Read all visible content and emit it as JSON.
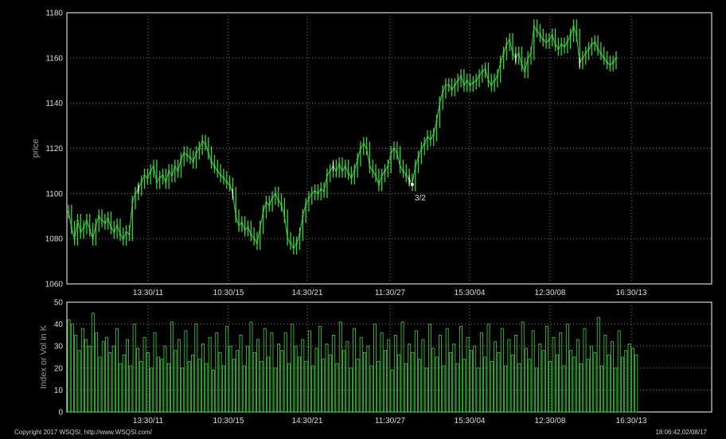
{
  "chart_data": [
    {
      "type": "line",
      "ylabel": "price",
      "ylim": [
        1060,
        1180
      ],
      "y_ticks": [
        1060,
        1080,
        1100,
        1120,
        1140,
        1160,
        1180
      ],
      "x_tick_labels": [
        "13:30/11",
        "10:30/15",
        "14:30/21",
        "11:30/27",
        "15:30/04",
        "12:30/08",
        "16:30/13"
      ],
      "grid": true,
      "colors": {
        "line": "#3cd23c",
        "gap_marker": "#ffffff"
      },
      "annotation": "3/2",
      "series": [
        {
          "x": [
            0,
            1,
            2,
            3,
            4,
            5,
            6,
            7,
            8,
            9,
            10,
            11,
            12,
            13,
            14,
            15,
            16,
            17,
            18,
            19,
            20,
            21,
            22,
            23,
            24,
            25,
            26,
            27,
            28,
            29,
            30,
            31,
            32,
            33,
            34,
            35,
            36,
            37,
            38,
            39,
            40,
            41,
            42,
            43,
            44,
            45,
            46,
            47,
            48,
            49,
            50,
            51,
            52,
            53,
            54,
            55,
            56,
            57,
            58,
            59,
            60,
            61,
            62,
            63,
            64,
            65,
            66,
            67,
            68,
            69,
            70,
            71,
            72,
            73,
            74,
            75,
            76,
            77,
            78,
            79,
            80,
            81,
            82,
            83,
            84,
            85,
            86,
            87,
            88,
            89,
            90,
            91,
            92,
            93,
            94,
            95,
            96,
            97,
            98,
            99,
            100,
            101,
            102,
            103,
            104,
            105,
            106,
            107,
            108,
            109,
            110,
            111,
            112,
            113,
            114,
            115,
            116,
            117,
            118,
            119,
            120,
            121,
            122,
            123,
            124,
            125,
            126,
            127,
            128,
            129,
            130,
            131,
            132,
            133,
            134,
            135,
            136,
            137,
            138,
            139,
            140,
            141,
            142,
            143,
            144,
            145,
            146,
            147,
            148,
            149,
            150,
            151,
            152,
            153,
            154,
            155,
            156,
            157,
            158,
            159,
            160,
            161,
            162,
            163,
            164,
            165,
            166,
            167,
            168,
            169,
            170,
            171,
            172,
            173,
            174,
            175,
            176,
            177,
            178,
            179,
            180
          ],
          "y": [
            1092,
            1085,
            1080,
            1088,
            1083,
            1085,
            1088,
            1084,
            1080,
            1086,
            1090,
            1088,
            1087,
            1089,
            1085,
            1083,
            1086,
            1082,
            1080,
            1083,
            1082,
            1096,
            1100,
            1102,
            1105,
            1108,
            1107,
            1110,
            1112,
            1105,
            1107,
            1108,
            1105,
            1110,
            1108,
            1112,
            1110,
            1115,
            1118,
            1117,
            1116,
            1114,
            1118,
            1120,
            1123,
            1122,
            1118,
            1114,
            1112,
            1110,
            1108,
            1107,
            1105,
            1104,
            1100,
            1090,
            1086,
            1087,
            1084,
            1085,
            1082,
            1080,
            1078,
            1085,
            1092,
            1096,
            1095,
            1098,
            1100,
            1097,
            1095,
            1090,
            1080,
            1078,
            1076,
            1078,
            1082,
            1090,
            1095,
            1098,
            1100,
            1101,
            1100,
            1102,
            1101,
            1108,
            1110,
            1112,
            1110,
            1113,
            1110,
            1112,
            1109,
            1107,
            1110,
            1115,
            1120,
            1122,
            1120,
            1112,
            1110,
            1108,
            1104,
            1108,
            1110,
            1112,
            1118,
            1120,
            1118,
            1112,
            1110,
            1108,
            1106,
            1104,
            1112,
            1116,
            1120,
            1122,
            1125,
            1124,
            1126,
            1132,
            1140,
            1145,
            1148,
            1148,
            1146,
            1148,
            1150,
            1152,
            1148,
            1150,
            1148,
            1149,
            1150,
            1152,
            1154,
            1155,
            1150,
            1148,
            1150,
            1152,
            1158,
            1162,
            1166,
            1168,
            1162,
            1160,
            1162,
            1157,
            1154,
            1160,
            1162,
            1174,
            1172,
            1170,
            1168,
            1167,
            1168,
            1170,
            1166,
            1164,
            1166,
            1165,
            1167,
            1170,
            1174,
            1170,
            1158,
            1160,
            1162,
            1164,
            1166,
            1167,
            1164,
            1162,
            1160,
            1158,
            1157,
            1158,
            1160
          ]
        }
      ],
      "gap_markers_x": [
        23,
        54,
        87,
        112,
        147,
        168
      ]
    },
    {
      "type": "bar",
      "ylabel": "Index or Vol in K",
      "ylim": [
        0,
        50
      ],
      "y_ticks": [
        0,
        10,
        20,
        30,
        40,
        50
      ],
      "x_tick_labels": [
        "13:30/11",
        "10:30/15",
        "14:30/21",
        "11:30/27",
        "15:30/04",
        "12:30/08",
        "16:30/13"
      ],
      "grid": true,
      "colors": {
        "bar": "#3cd23c"
      },
      "series": [
        {
          "values": [
            42,
            40,
            35,
            28,
            38,
            33,
            30,
            45,
            36,
            25,
            32,
            34,
            27,
            30,
            38,
            22,
            26,
            33,
            21,
            40,
            29,
            23,
            34,
            27,
            20,
            36,
            25,
            24,
            30,
            22,
            41,
            28,
            33,
            20,
            37,
            23,
            26,
            40,
            24,
            31,
            22,
            34,
            19,
            36,
            27,
            21,
            39,
            30,
            24,
            28,
            35,
            21,
            30,
            41,
            27,
            33,
            23,
            38,
            25,
            36,
            20,
            31,
            28,
            36,
            22,
            40,
            30,
            25,
            33,
            23,
            37,
            21,
            29,
            39,
            24,
            31,
            26,
            35,
            22,
            41,
            28,
            32,
            20,
            38,
            24,
            34,
            27,
            30,
            21,
            40,
            23,
            36,
            28,
            33,
            19,
            35,
            26,
            41,
            22,
            31,
            27,
            37,
            24,
            33,
            20,
            40,
            29,
            25,
            35,
            21,
            38,
            27,
            31,
            22,
            39,
            24,
            34,
            28,
            30,
            20,
            36,
            25,
            40,
            23,
            32,
            27,
            38,
            21,
            33,
            26,
            35,
            22,
            41,
            29,
            24,
            37,
            20,
            31,
            28,
            39,
            23,
            34,
            26,
            36,
            21,
            40,
            28,
            25,
            33,
            22,
            38,
            24,
            30,
            27,
            43,
            21,
            35,
            26,
            32,
            20,
            37,
            25,
            28,
            31,
            29,
            26
          ],
          "x_tick_positions": [
            18,
            44,
            70,
            96,
            122,
            148,
            174
          ]
        }
      ]
    }
  ],
  "footer": {
    "copyright": "Copyright 2017 WSQSI, http://www.WSQSI.com/",
    "timestamp": "18:06:42,02/08/17"
  }
}
